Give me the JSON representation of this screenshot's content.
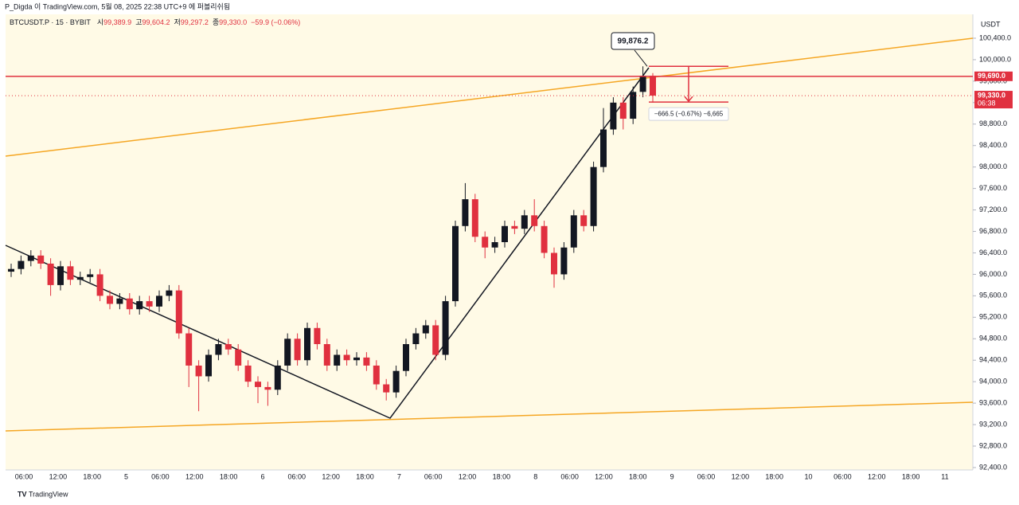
{
  "header": {
    "published": "P_Digda 이 TradingView.com, 5월 08, 2025 22:38 UTC+9 에 퍼블리쉬됨"
  },
  "footer": {
    "brand": "TradingView"
  },
  "chart_data": {
    "type": "candlestick",
    "symbol": "BTCUSDT.P · 15 · BYBIT",
    "legend": [
      {
        "label": "시",
        "value": "99,389.9"
      },
      {
        "label": "고",
        "value": "99,604.2"
      },
      {
        "label": "저",
        "value": "99,297.2"
      },
      {
        "label": "종",
        "value": "99,330.0"
      }
    ],
    "change": "−59.9 (−0.06%)",
    "currency": "USDT",
    "up_color": "#131722",
    "down_color": "#e0303f",
    "ylim": [
      92355,
      100845
    ],
    "yticks": [
      {
        "value": 92400,
        "label": "92,400.0"
      },
      {
        "value": 92800,
        "label": "92,800.0"
      },
      {
        "value": 93200,
        "label": "93,200.0"
      },
      {
        "value": 93600,
        "label": "93,600.0"
      },
      {
        "value": 94000,
        "label": "94,000.0"
      },
      {
        "value": 94400,
        "label": "94,400.0"
      },
      {
        "value": 94800,
        "label": "94,800.0"
      },
      {
        "value": 95200,
        "label": "95,200.0"
      },
      {
        "value": 95600,
        "label": "95,600.0"
      },
      {
        "value": 96000,
        "label": "96,000.0"
      },
      {
        "value": 96400,
        "label": "96,400.0"
      },
      {
        "value": 96800,
        "label": "96,800.0"
      },
      {
        "value": 97200,
        "label": "97,200.0"
      },
      {
        "value": 97600,
        "label": "97,600.0"
      },
      {
        "value": 98000,
        "label": "98,000.0"
      },
      {
        "value": 98400,
        "label": "98,400.0"
      },
      {
        "value": 98800,
        "label": "98,800.0"
      },
      {
        "value": 99200,
        "label": "99,200.0"
      },
      {
        "value": 99600,
        "label": "99,600.0"
      },
      {
        "value": 100000,
        "label": "100,000.0"
      },
      {
        "value": 100400,
        "label": "100,400.0"
      }
    ],
    "time_labels": [
      "06:00",
      "12:00",
      "18:00",
      "5",
      "06:00",
      "12:00",
      "18:00",
      "6",
      "06:00",
      "12:00",
      "18:00",
      "7",
      "06:00",
      "12:00",
      "18:00",
      "8",
      "06:00",
      "12:00",
      "18:00",
      "9",
      "06:00",
      "12:00",
      "18:00",
      "10",
      "06:00",
      "12:00",
      "18:00",
      "11"
    ],
    "open": [
      96050,
      96100,
      96250,
      96350,
      96200,
      95800,
      96150,
      95900,
      95950,
      96000,
      95600,
      95450,
      95550,
      95350,
      95500,
      95400,
      95600,
      95700,
      94900,
      94300,
      94100,
      94500,
      94700,
      94600,
      94300,
      94000,
      93900,
      93850,
      94300,
      94800,
      94400,
      95000,
      94700,
      94300,
      94500,
      94400,
      94450,
      94300,
      93950,
      93800,
      94200,
      94700,
      94900,
      95050,
      94500,
      95500,
      96900,
      97400,
      96700,
      96500,
      96600,
      96900,
      96850,
      97100,
      96900,
      96400,
      96000,
      96500,
      97100,
      96900,
      98000,
      98700,
      99200,
      98900,
      99400,
      99700
    ],
    "high": [
      96200,
      96350,
      96450,
      96450,
      96300,
      96250,
      96250,
      96050,
      96100,
      96100,
      95700,
      95650,
      95650,
      95600,
      95600,
      95700,
      95800,
      95800,
      95000,
      94400,
      94600,
      94800,
      94800,
      94700,
      94400,
      94100,
      94000,
      94400,
      94900,
      94900,
      95100,
      95100,
      94800,
      94600,
      94600,
      94550,
      94550,
      94400,
      94050,
      94300,
      94800,
      95000,
      95150,
      95150,
      95600,
      97000,
      97700,
      97500,
      96800,
      96700,
      97000,
      97000,
      97200,
      97400,
      97000,
      96500,
      96600,
      97200,
      97200,
      98100,
      99100,
      99300,
      99300,
      99500,
      99876.2,
      99750
    ],
    "low": [
      95950,
      96000,
      96150,
      96100,
      95600,
      95700,
      95800,
      95800,
      95850,
      95500,
      95350,
      95350,
      95250,
      95250,
      95300,
      95300,
      95500,
      94800,
      93900,
      93450,
      94000,
      94400,
      94500,
      94200,
      93900,
      93600,
      93550,
      93750,
      94200,
      94300,
      94300,
      94600,
      94200,
      94200,
      94300,
      94300,
      94200,
      93850,
      93650,
      93700,
      94100,
      94600,
      94800,
      94400,
      94400,
      95400,
      96800,
      96600,
      96300,
      96400,
      96500,
      96750,
      96750,
      96800,
      96300,
      95750,
      95900,
      96400,
      96800,
      96800,
      97900,
      98600,
      98700,
      98800,
      99300,
      99200
    ],
    "close": [
      96100,
      96250,
      96350,
      96200,
      95800,
      96150,
      95900,
      95950,
      96000,
      95600,
      95450,
      95550,
      95350,
      95500,
      95400,
      95600,
      95700,
      94900,
      94300,
      94100,
      94500,
      94700,
      94600,
      94300,
      94000,
      93900,
      93850,
      94300,
      94800,
      94400,
      95000,
      94700,
      94300,
      94500,
      94400,
      94450,
      94300,
      93950,
      93800,
      94200,
      94700,
      94900,
      95050,
      94500,
      95500,
      96900,
      97400,
      96700,
      96500,
      96600,
      96900,
      96850,
      97100,
      96900,
      96400,
      96000,
      96500,
      97100,
      96900,
      98000,
      98700,
      99200,
      98900,
      99400,
      99700,
      99330
    ],
    "price_line": {
      "value": 99690,
      "label": "99,690.0",
      "color": "#e0303f"
    },
    "last_price": {
      "value": 99330,
      "label": "99,330.0",
      "countdown": "06:38",
      "color": "#e0303f"
    },
    "callout": {
      "value": 99876.2,
      "label": "99,876.2"
    },
    "measure": {
      "start": 99876.2,
      "change": -666.5,
      "label": "−666.5 (−0.67%) −6,665"
    }
  }
}
